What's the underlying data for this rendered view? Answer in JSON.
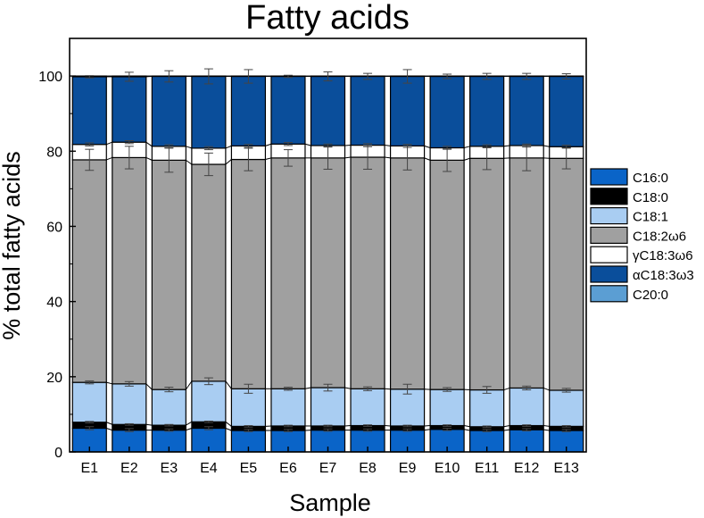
{
  "chart_data": {
    "type": "bar",
    "stacked": true,
    "title": "Fatty acids",
    "xlabel": "Sample",
    "ylabel": "% total fatty acids",
    "categories": [
      "E1",
      "E2",
      "E3",
      "E4",
      "E5",
      "E6",
      "E7",
      "E8",
      "E9",
      "E10",
      "E11",
      "E12",
      "E13"
    ],
    "ylim": [
      0,
      110
    ],
    "yticks": [
      0,
      20,
      40,
      60,
      80,
      100
    ],
    "grid": false,
    "legend_position": "right",
    "series": [
      {
        "name": "C16:0",
        "color": "#0a64c8",
        "values": [
          6.3,
          5.8,
          5.8,
          6.3,
          5.7,
          5.7,
          5.8,
          5.8,
          5.8,
          6.0,
          5.7,
          5.9,
          5.7
        ],
        "errors": [
          0.4,
          0.4,
          0.3,
          0.4,
          0.3,
          0.3,
          0.3,
          0.3,
          0.3,
          0.3,
          0.3,
          0.3,
          0.3
        ]
      },
      {
        "name": "C18:0",
        "color": "#000000",
        "values": [
          1.6,
          1.5,
          1.3,
          1.7,
          1.1,
          1.2,
          1.1,
          1.2,
          1.1,
          1.0,
          1.0,
          1.1,
          1.1
        ],
        "errors": [
          0.2,
          0.2,
          0.2,
          0.2,
          0.2,
          0.2,
          0.2,
          0.2,
          0.2,
          0.2,
          0.2,
          0.2,
          0.2
        ]
      },
      {
        "name": "C18:1",
        "color": "#a9cdf2",
        "values": [
          10.6,
          10.8,
          9.5,
          10.8,
          10.0,
          9.9,
          10.2,
          9.8,
          9.8,
          9.6,
          9.8,
          10.0,
          9.6
        ],
        "errors": [
          0.4,
          0.6,
          0.6,
          0.9,
          1.2,
          0.4,
          0.9,
          0.5,
          1.3,
          0.5,
          0.9,
          0.5,
          0.5
        ]
      },
      {
        "name": "C18:2ω6",
        "color": "#a0a0a0",
        "values": [
          59.2,
          60.2,
          61.0,
          57.7,
          61.0,
          61.4,
          61.1,
          61.6,
          61.5,
          61.0,
          61.6,
          61.2,
          61.7
        ],
        "errors": [
          2.8,
          3.0,
          3.2,
          3.0,
          3.0,
          2.2,
          3.0,
          3.2,
          3.2,
          3.0,
          3.0,
          3.4,
          2.8
        ]
      },
      {
        "name": "γC18:3ω6",
        "color": "#ffffff",
        "values": [
          4.1,
          4.1,
          3.7,
          4.3,
          3.6,
          3.7,
          3.3,
          3.2,
          3.2,
          3.3,
          3.2,
          3.3,
          3.1
        ],
        "errors": [
          0.4,
          0.4,
          0.4,
          0.4,
          0.4,
          0.4,
          0.4,
          0.4,
          0.4,
          0.4,
          0.4,
          0.4,
          0.4
        ]
      },
      {
        "name": "αC18:3ω3",
        "color": "#0a4e9b",
        "values": [
          18.0,
          17.4,
          18.6,
          19.1,
          18.5,
          18.0,
          18.4,
          18.3,
          18.5,
          19.0,
          18.6,
          18.4,
          18.7
        ],
        "errors": [
          0.3,
          1.2,
          1.5,
          2.0,
          1.8,
          0.3,
          1.2,
          0.8,
          1.8,
          0.6,
          0.8,
          0.8,
          0.7
        ]
      },
      {
        "name": "C20:0",
        "color": "#5b9ed3",
        "values": [
          0.2,
          0.2,
          0.1,
          0.1,
          0.1,
          0.1,
          0.1,
          0.1,
          0.1,
          0.1,
          0.1,
          0.1,
          0.1
        ],
        "errors": [
          0,
          0,
          0,
          0,
          0,
          0,
          0,
          0,
          0,
          0,
          0,
          0,
          0
        ]
      }
    ]
  }
}
